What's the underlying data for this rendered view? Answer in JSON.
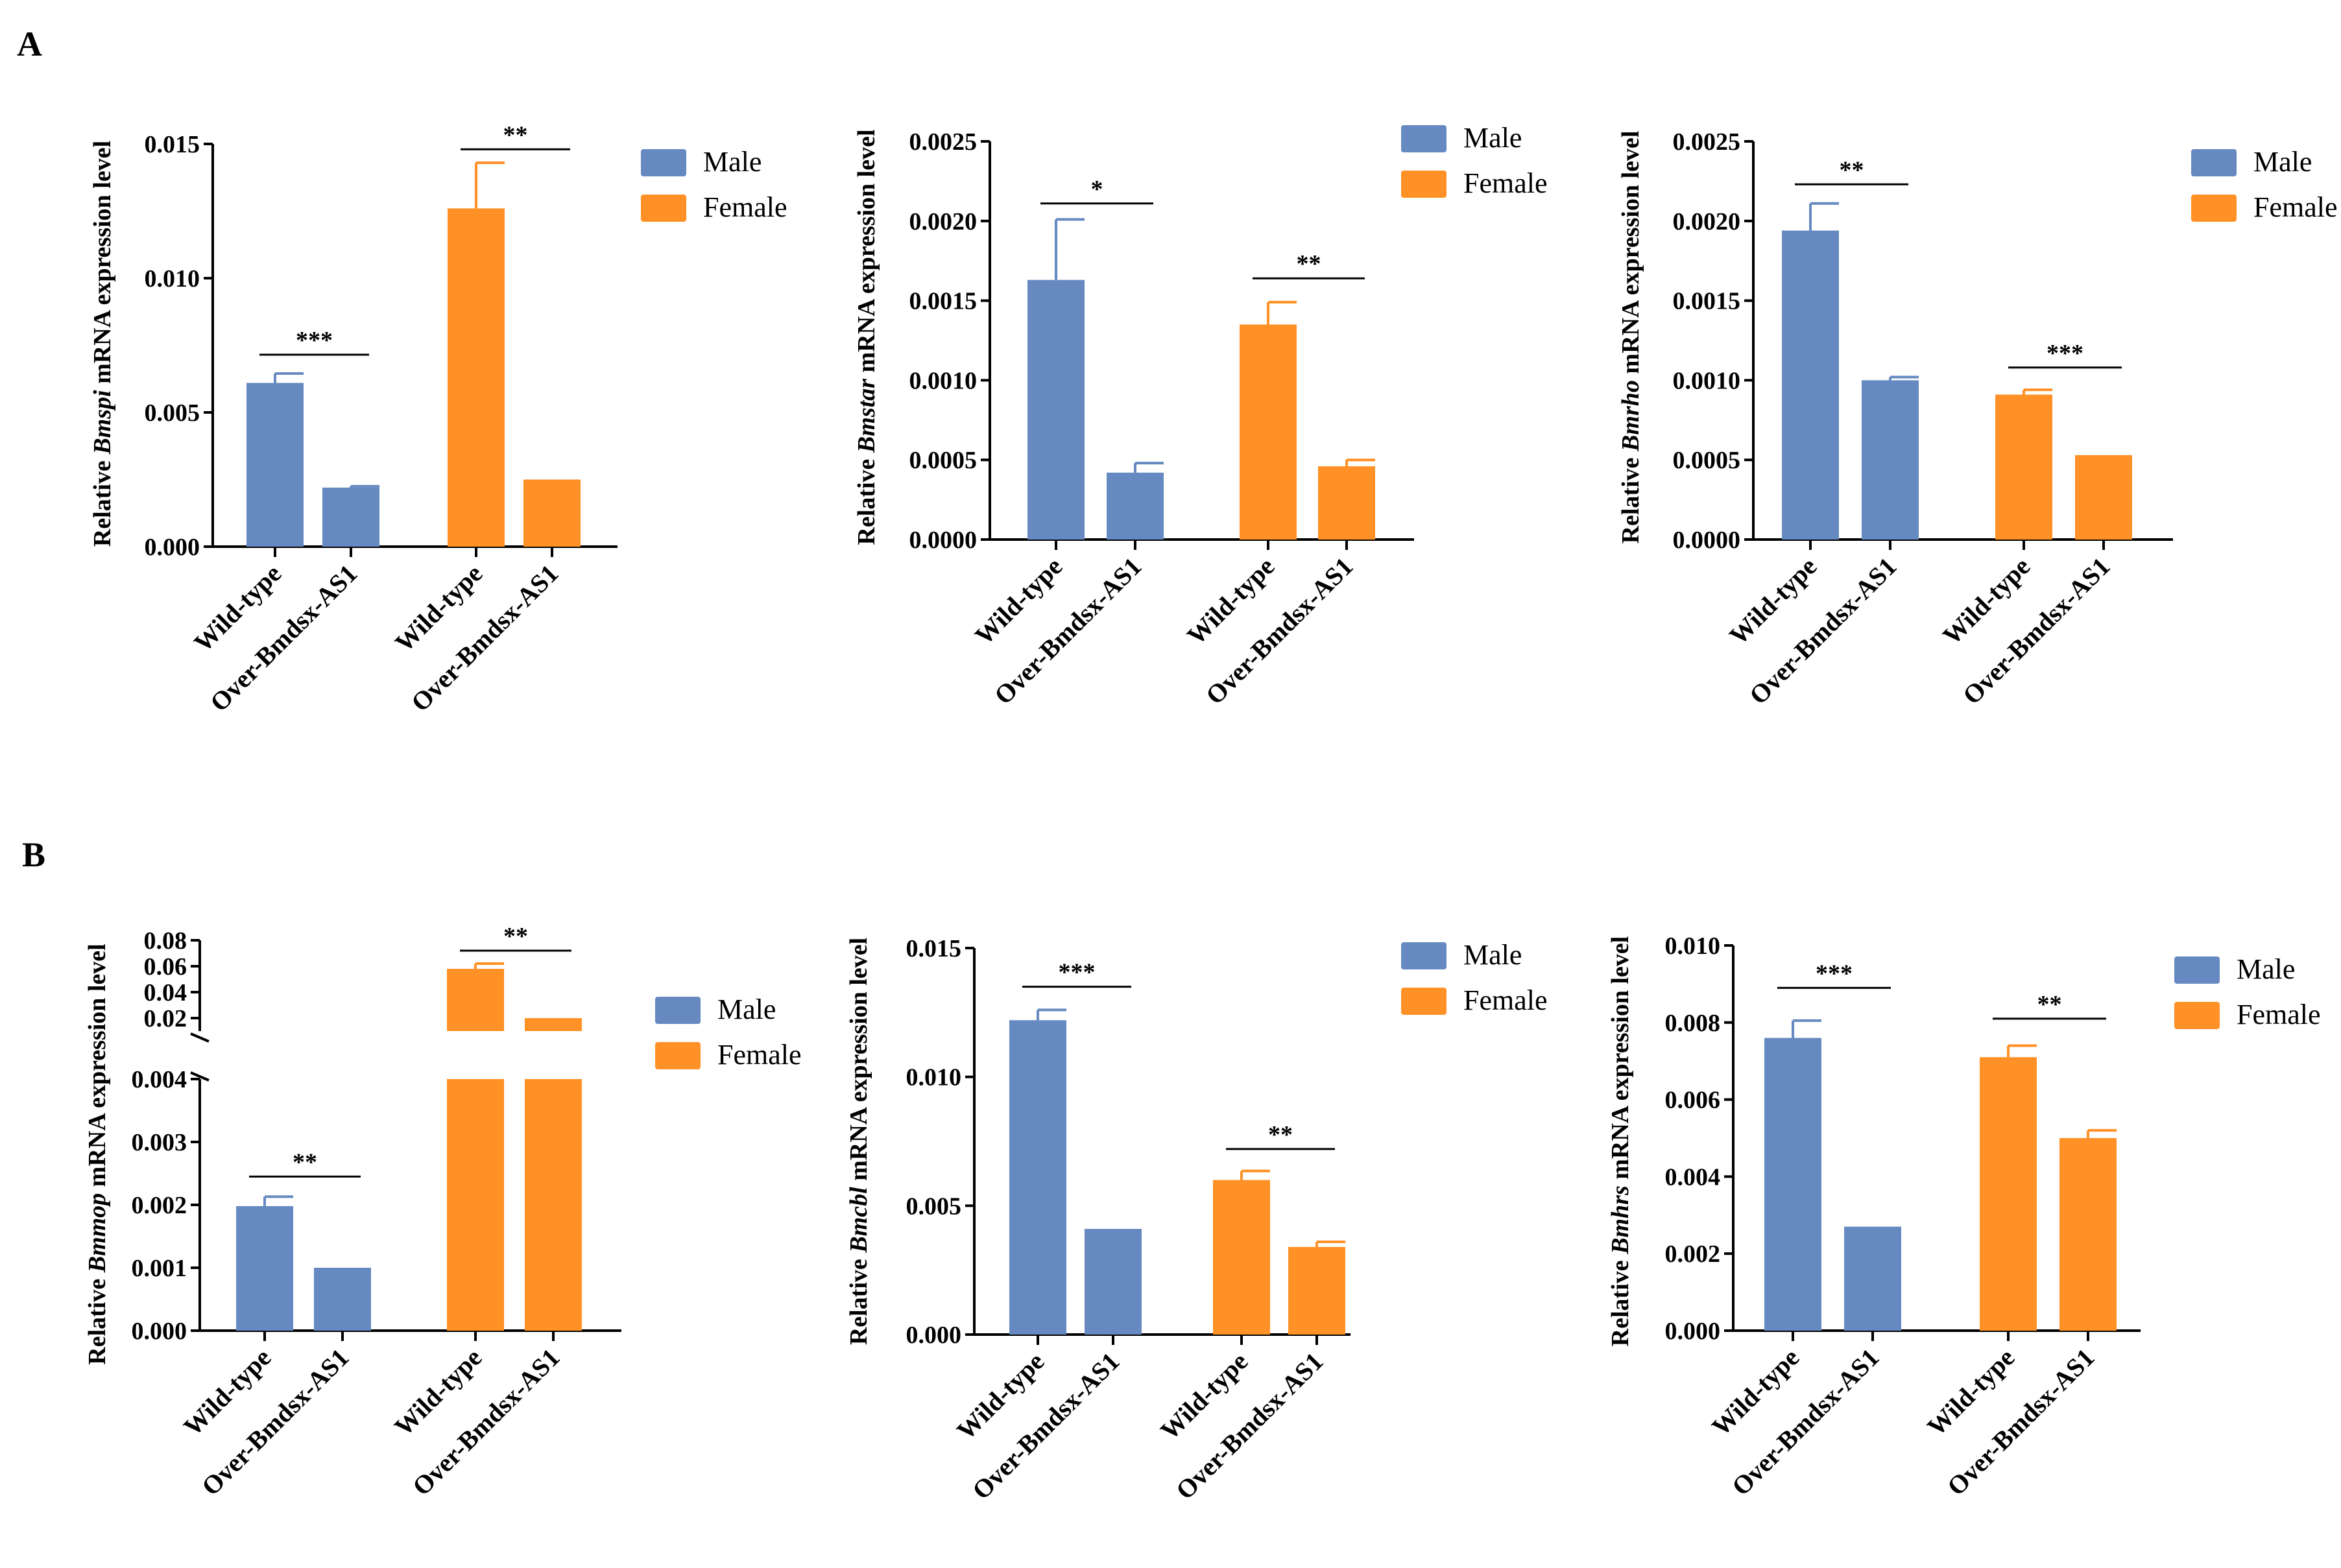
{
  "panel_labels": [
    "A",
    "B"
  ],
  "colors": {
    "male": "#6589C0",
    "female": "#FF9126",
    "axis": "#000000"
  },
  "legend": {
    "male": "Male",
    "female": "Female"
  },
  "chart_data": [
    {
      "id": "A1",
      "type": "bar",
      "ylabel_prefix": "Relative ",
      "gene": "Bmspi",
      "ylabel_suffix": " mRNA expression level",
      "ylim": [
        0,
        0.015
      ],
      "yticks": [
        {
          "v": 0,
          "label": "0.000"
        },
        {
          "v": 0.005,
          "label": "0.005"
        },
        {
          "v": 0.01,
          "label": "0.010"
        },
        {
          "v": 0.015,
          "label": "0.015"
        }
      ],
      "categories": [
        "Wild-type",
        "Over-Bmdsx-AS1",
        "Wild-type",
        "Over-Bmdsx-AS1"
      ],
      "bars": [
        {
          "group": "Male",
          "value": 0.0061,
          "error": 0.00035
        },
        {
          "group": "Male",
          "value": 0.0022,
          "error": 5e-05
        },
        {
          "group": "Female",
          "value": 0.0126,
          "error": 0.0017
        },
        {
          "group": "Female",
          "value": 0.0025,
          "error": 0
        }
      ],
      "significance": [
        {
          "bars": [
            0,
            1
          ],
          "label": "***",
          "y": 0.00715
        },
        {
          "bars": [
            2,
            3
          ],
          "label": "**",
          "y": 0.0148
        }
      ]
    },
    {
      "id": "A2",
      "type": "bar",
      "ylabel_prefix": "Relative ",
      "gene": "Bmstar",
      "ylabel_suffix": " mRNA expression level",
      "ylim": [
        0,
        0.0025
      ],
      "yticks": [
        {
          "v": 0,
          "label": "0.0000"
        },
        {
          "v": 0.0005,
          "label": "0.0005"
        },
        {
          "v": 0.001,
          "label": "0.0010"
        },
        {
          "v": 0.0015,
          "label": "0.0015"
        },
        {
          "v": 0.002,
          "label": "0.0020"
        },
        {
          "v": 0.0025,
          "label": "0.0025"
        }
      ],
      "categories": [
        "Wild-type",
        "Over-Bmdsx-AS1",
        "Wild-type",
        "Over-Bmdsx-AS1"
      ],
      "bars": [
        {
          "group": "Male",
          "value": 0.00163,
          "error": 0.00038
        },
        {
          "group": "Male",
          "value": 0.00042,
          "error": 6e-05
        },
        {
          "group": "Female",
          "value": 0.00135,
          "error": 0.00014
        },
        {
          "group": "Female",
          "value": 0.00046,
          "error": 4e-05
        }
      ],
      "significance": [
        {
          "bars": [
            0,
            1
          ],
          "label": "*",
          "y": 0.00211
        },
        {
          "bars": [
            2,
            3
          ],
          "label": "**",
          "y": 0.00164
        }
      ]
    },
    {
      "id": "A3",
      "type": "bar",
      "ylabel_prefix": "Relative ",
      "gene": "Bmrho",
      "ylabel_suffix": " mRNA expression level",
      "ylim": [
        0,
        0.0025
      ],
      "yticks": [
        {
          "v": 0,
          "label": "0.0000"
        },
        {
          "v": 0.0005,
          "label": "0.0005"
        },
        {
          "v": 0.001,
          "label": "0.0010"
        },
        {
          "v": 0.0015,
          "label": "0.0015"
        },
        {
          "v": 0.002,
          "label": "0.0020"
        },
        {
          "v": 0.0025,
          "label": "0.0025"
        }
      ],
      "categories": [
        "Wild-type",
        "Over-Bmdsx-AS1",
        "Wild-type",
        "Over-Bmdsx-AS1"
      ],
      "bars": [
        {
          "group": "Male",
          "value": 0.00194,
          "error": 0.00017
        },
        {
          "group": "Male",
          "value": 0.001,
          "error": 2e-05
        },
        {
          "group": "Female",
          "value": 0.00091,
          "error": 3e-05
        },
        {
          "group": "Female",
          "value": 0.00053,
          "error": 0
        }
      ],
      "significance": [
        {
          "bars": [
            0,
            1
          ],
          "label": "**",
          "y": 0.00223
        },
        {
          "bars": [
            2,
            3
          ],
          "label": "***",
          "y": 0.00108
        }
      ]
    },
    {
      "id": "B1",
      "type": "bar",
      "broken_axis": true,
      "ylabel_prefix": "Relative ",
      "gene": "Bmmop",
      "ylabel_suffix": " mRNA expression level",
      "ylim_lower": [
        0,
        0.004
      ],
      "ylim_upper": [
        0.01,
        0.08
      ],
      "yticks": [
        {
          "v": 0,
          "label": "0.000"
        },
        {
          "v": 0.001,
          "label": "0.001"
        },
        {
          "v": 0.002,
          "label": "0.002"
        },
        {
          "v": 0.003,
          "label": "0.003"
        },
        {
          "v": 0.004,
          "label": "0.004"
        }
      ],
      "yticks_upper": [
        {
          "v": 0.02,
          "label": "0.02"
        },
        {
          "v": 0.04,
          "label": "0.04"
        },
        {
          "v": 0.06,
          "label": "0.06"
        },
        {
          "v": 0.08,
          "label": "0.08"
        }
      ],
      "categories": [
        "Wild-type",
        "Over-Bmdsx-AS1",
        "Wild-type",
        "Over-Bmdsx-AS1"
      ],
      "bars": [
        {
          "group": "Male",
          "value": 0.00198,
          "error": 0.00015
        },
        {
          "group": "Male",
          "value": 0.001,
          "error": 0
        },
        {
          "group": "Female",
          "value": 0.058,
          "error": 0.004
        },
        {
          "group": "Female",
          "value": 0.02,
          "error": 0
        }
      ],
      "significance": [
        {
          "bars": [
            0,
            1
          ],
          "label": "**",
          "y": 0.00245
        },
        {
          "bars": [
            2,
            3
          ],
          "label": "**",
          "y": 0.072
        }
      ]
    },
    {
      "id": "B2",
      "type": "bar",
      "ylabel_prefix": "Relative ",
      "gene": "Bmcbl",
      "ylabel_suffix": " mRNA expression level",
      "ylim": [
        0,
        0.015
      ],
      "yticks": [
        {
          "v": 0,
          "label": "0.000"
        },
        {
          "v": 0.005,
          "label": "0.005"
        },
        {
          "v": 0.01,
          "label": "0.010"
        },
        {
          "v": 0.015,
          "label": "0.015"
        }
      ],
      "categories": [
        "Wild-type",
        "Over-Bmdsx-AS1",
        "Wild-type",
        "Over-Bmdsx-AS1"
      ],
      "bars": [
        {
          "group": "Male",
          "value": 0.0122,
          "error": 0.0004
        },
        {
          "group": "Male",
          "value": 0.0041,
          "error": 0
        },
        {
          "group": "Female",
          "value": 0.006,
          "error": 0.00035
        },
        {
          "group": "Female",
          "value": 0.0034,
          "error": 0.0002
        }
      ],
      "significance": [
        {
          "bars": [
            0,
            1
          ],
          "label": "***",
          "y": 0.0135
        },
        {
          "bars": [
            2,
            3
          ],
          "label": "**",
          "y": 0.0072
        }
      ]
    },
    {
      "id": "B3",
      "type": "bar",
      "ylabel_prefix": "Relative ",
      "gene": "Bmhrs",
      "ylabel_suffix": " mRNA expression level",
      "ylim": [
        0,
        0.01
      ],
      "yticks": [
        {
          "v": 0,
          "label": "0.000"
        },
        {
          "v": 0.002,
          "label": "0.002"
        },
        {
          "v": 0.004,
          "label": "0.004"
        },
        {
          "v": 0.006,
          "label": "0.006"
        },
        {
          "v": 0.008,
          "label": "0.008"
        },
        {
          "v": 0.01,
          "label": "0.010"
        }
      ],
      "categories": [
        "Wild-type",
        "Over-Bmdsx-AS1",
        "Wild-type",
        "Over-Bmdsx-AS1"
      ],
      "bars": [
        {
          "group": "Male",
          "value": 0.0076,
          "error": 0.00045
        },
        {
          "group": "Male",
          "value": 0.0027,
          "error": 0
        },
        {
          "group": "Female",
          "value": 0.0071,
          "error": 0.0003
        },
        {
          "group": "Female",
          "value": 0.005,
          "error": 0.0002
        }
      ],
      "significance": [
        {
          "bars": [
            0,
            1
          ],
          "label": "***",
          "y": 0.0089
        },
        {
          "bars": [
            2,
            3
          ],
          "label": "**",
          "y": 0.0081
        }
      ]
    }
  ]
}
